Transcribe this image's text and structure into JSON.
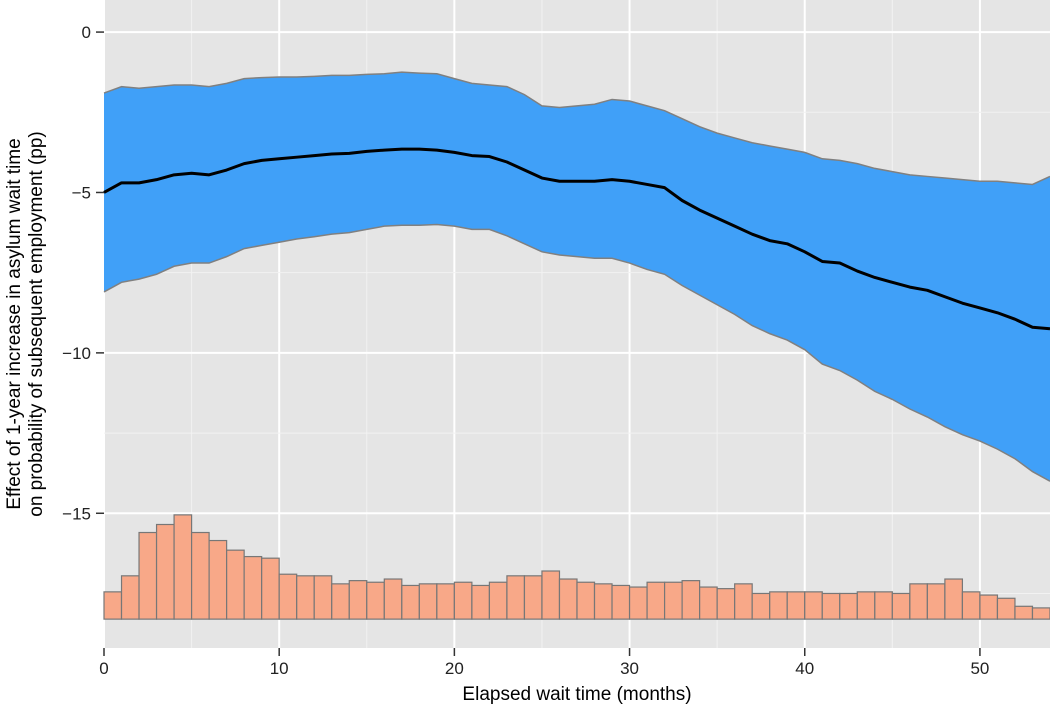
{
  "chart_data": {
    "type": "line",
    "title": "",
    "xlabel": "Elapsed wait time (months)",
    "ylabel_lines": [
      "Effect of 1-year increase in asylum wait time",
      "on probability of subsequent employment (pp)"
    ],
    "xlim": [
      0,
      54
    ],
    "ylim": [
      -19.2,
      1
    ],
    "x_ticks": [
      0,
      10,
      20,
      30,
      40,
      50
    ],
    "y_ticks": [
      0,
      -5,
      -10,
      -15
    ],
    "grid": true,
    "legend": "none",
    "colors": {
      "panel": "#e5e5e5",
      "grid": "#ffffff",
      "band": "#40a0f8",
      "band_edge": "#808080",
      "line": "#000000",
      "bar": "#f8a888",
      "bar_edge": "#777777"
    },
    "x": [
      0,
      1,
      2,
      3,
      4,
      5,
      6,
      7,
      8,
      9,
      10,
      11,
      12,
      13,
      14,
      15,
      16,
      17,
      18,
      19,
      20,
      21,
      22,
      23,
      24,
      25,
      26,
      27,
      28,
      29,
      30,
      31,
      32,
      33,
      34,
      35,
      36,
      37,
      38,
      39,
      40,
      41,
      42,
      43,
      44,
      45,
      46,
      47,
      48,
      49,
      50,
      51,
      52,
      53,
      54
    ],
    "series": [
      {
        "role": "estimate",
        "values": [
          -5.0,
          -4.7,
          -4.7,
          -4.6,
          -4.45,
          -4.4,
          -4.45,
          -4.3,
          -4.1,
          -4.0,
          -3.95,
          -3.9,
          -3.85,
          -3.8,
          -3.78,
          -3.72,
          -3.68,
          -3.65,
          -3.65,
          -3.68,
          -3.75,
          -3.85,
          -3.88,
          -4.05,
          -4.3,
          -4.55,
          -4.65,
          -4.65,
          -4.65,
          -4.6,
          -4.65,
          -4.75,
          -4.85,
          -5.25,
          -5.55,
          -5.8,
          -6.05,
          -6.3,
          -6.5,
          -6.6,
          -6.85,
          -7.15,
          -7.2,
          -7.45,
          -7.65,
          -7.8,
          -7.95,
          -8.05,
          -8.25,
          -8.45,
          -8.6,
          -8.75,
          -8.95,
          -9.2,
          -9.25
        ]
      },
      {
        "role": "ci_upper",
        "values": [
          -1.9,
          -1.7,
          -1.75,
          -1.7,
          -1.65,
          -1.65,
          -1.7,
          -1.6,
          -1.45,
          -1.42,
          -1.4,
          -1.4,
          -1.38,
          -1.35,
          -1.35,
          -1.32,
          -1.3,
          -1.25,
          -1.28,
          -1.3,
          -1.45,
          -1.6,
          -1.65,
          -1.7,
          -1.95,
          -2.3,
          -2.35,
          -2.3,
          -2.25,
          -2.1,
          -2.15,
          -2.3,
          -2.45,
          -2.7,
          -2.95,
          -3.15,
          -3.3,
          -3.45,
          -3.55,
          -3.65,
          -3.75,
          -3.95,
          -4.0,
          -4.1,
          -4.25,
          -4.35,
          -4.45,
          -4.5,
          -4.55,
          -4.6,
          -4.65,
          -4.65,
          -4.7,
          -4.75,
          -4.5
        ]
      },
      {
        "role": "ci_lower",
        "values": [
          -8.1,
          -7.8,
          -7.7,
          -7.55,
          -7.3,
          -7.2,
          -7.2,
          -7.0,
          -6.75,
          -6.65,
          -6.55,
          -6.45,
          -6.38,
          -6.3,
          -6.25,
          -6.15,
          -6.05,
          -6.02,
          -6.02,
          -6.0,
          -6.05,
          -6.15,
          -6.15,
          -6.35,
          -6.6,
          -6.85,
          -6.95,
          -7.0,
          -7.05,
          -7.05,
          -7.2,
          -7.4,
          -7.55,
          -7.9,
          -8.2,
          -8.5,
          -8.8,
          -9.15,
          -9.4,
          -9.6,
          -9.9,
          -10.35,
          -10.55,
          -10.85,
          -11.2,
          -11.45,
          -11.75,
          -12.0,
          -12.3,
          -12.55,
          -12.75,
          -13.0,
          -13.3,
          -13.7,
          -14.0
        ]
      }
    ],
    "histogram": {
      "description_y_units": "bar top height on the y scale",
      "bin_width_months": 1,
      "bin_starts": [
        0,
        1,
        2,
        3,
        4,
        5,
        6,
        7,
        8,
        9,
        10,
        11,
        12,
        13,
        14,
        15,
        16,
        17,
        18,
        19,
        20,
        21,
        22,
        23,
        24,
        25,
        26,
        27,
        28,
        29,
        30,
        31,
        32,
        33,
        34,
        35,
        36,
        37,
        38,
        39,
        40,
        41,
        42,
        43,
        44,
        45,
        46,
        47,
        48,
        49,
        50,
        51,
        52,
        53
      ],
      "baseline": -18.3,
      "tops": [
        -17.45,
        -16.95,
        -15.6,
        -15.35,
        -15.05,
        -15.6,
        -15.85,
        -16.15,
        -16.35,
        -16.4,
        -16.9,
        -16.95,
        -16.95,
        -17.2,
        -17.1,
        -17.15,
        -17.05,
        -17.25,
        -17.2,
        -17.2,
        -17.15,
        -17.25,
        -17.15,
        -16.95,
        -16.95,
        -16.8,
        -17.05,
        -17.15,
        -17.2,
        -17.25,
        -17.3,
        -17.15,
        -17.15,
        -17.1,
        -17.3,
        -17.35,
        -17.2,
        -17.5,
        -17.45,
        -17.45,
        -17.45,
        -17.5,
        -17.5,
        -17.45,
        -17.45,
        -17.5,
        -17.2,
        -17.2,
        -17.05,
        -17.45,
        -17.55,
        -17.65,
        -17.9,
        -17.95
      ]
    }
  }
}
